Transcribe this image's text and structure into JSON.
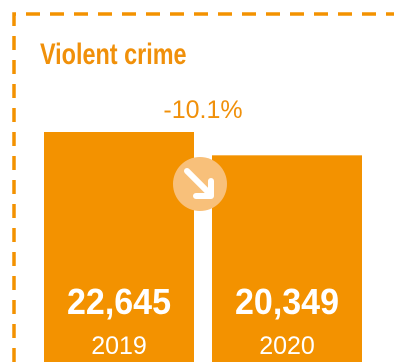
{
  "chart_data": {
    "type": "bar",
    "title": "Violent crime",
    "categories": [
      "2019",
      "2020"
    ],
    "values": [
      22645,
      20349
    ],
    "value_labels": [
      "22,645",
      "20,349"
    ],
    "change_label": "-10.1%",
    "trend_icon": "arrow-down-right-icon",
    "ylim": [
      0,
      22645
    ],
    "colors": {
      "bar": "#f39200",
      "accent": "#f0900a",
      "value_text": "#ffffff",
      "badge": "#f8c07a",
      "border": "#f39200"
    }
  }
}
